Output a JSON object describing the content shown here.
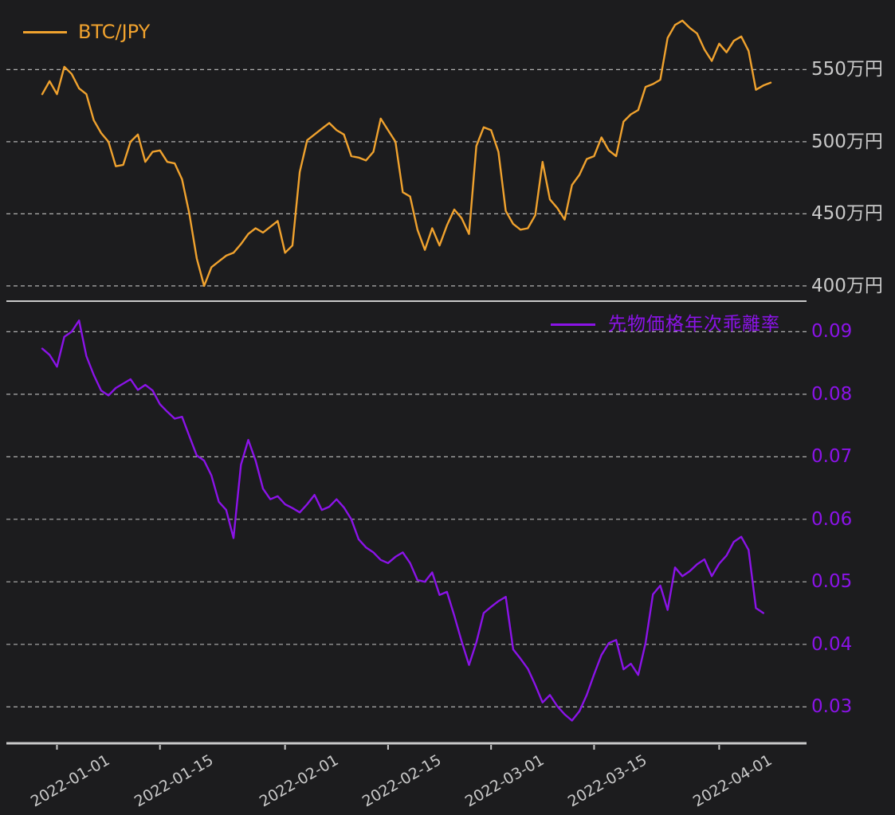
{
  "background_color": "#1c1c1e",
  "grid_color": "#b0b0b0",
  "axis_color": "#c9c9c9",
  "chart_data": [
    {
      "type": "line",
      "name": "btc-jpy-price",
      "legend": "BTC/JPY",
      "legend_position": "upper left",
      "color": "#f0a22e",
      "tick_label_color": "#c9c9c9",
      "unit": "万円",
      "ylim": [
        390,
        590
      ],
      "grid": true,
      "y_ticks": [
        {
          "value": 550,
          "label": "550万円"
        },
        {
          "value": 500,
          "label": "500万円"
        },
        {
          "value": 450,
          "label": "450万円"
        },
        {
          "value": 400,
          "label": "400万円"
        }
      ],
      "x_start_date": "2021-12-30",
      "x_interval": "daily",
      "values": [
        533,
        542,
        533,
        552,
        547,
        537,
        533,
        515,
        506,
        500,
        483,
        484,
        500,
        505,
        486,
        493,
        494,
        486,
        485,
        474,
        450,
        419,
        400,
        413,
        417,
        421,
        423,
        429,
        436,
        440,
        437,
        441,
        445,
        423,
        428,
        479,
        501,
        505,
        509,
        513,
        508,
        505,
        490,
        489,
        487,
        493,
        516,
        508,
        500,
        465,
        462,
        439,
        425,
        440,
        428,
        442,
        453,
        447,
        436,
        497,
        510,
        508,
        493,
        452,
        443,
        439,
        440,
        449,
        486,
        460,
        454,
        446,
        470,
        477,
        488,
        490,
        503,
        494,
        490,
        514,
        519,
        522,
        538,
        540,
        543,
        572,
        581,
        584,
        579,
        575,
        564,
        556,
        568,
        562,
        570,
        573,
        563,
        536,
        539,
        541
      ]
    },
    {
      "type": "line",
      "name": "futures-annualized-divergence-rate",
      "legend": "先物価格年次乖離率",
      "legend_position": "upper right",
      "color": "#8b13e8",
      "tick_label_color": "#8b13e8",
      "unit": "",
      "ylim": [
        0.0243,
        0.094
      ],
      "grid": true,
      "y_ticks": [
        {
          "value": 0.09,
          "label": "0.09"
        },
        {
          "value": 0.08,
          "label": "0.08"
        },
        {
          "value": 0.07,
          "label": "0.07"
        },
        {
          "value": 0.06,
          "label": "0.06"
        },
        {
          "value": 0.05,
          "label": "0.05"
        },
        {
          "value": 0.04,
          "label": "0.04"
        },
        {
          "value": 0.03,
          "label": "0.03"
        }
      ],
      "x_start_date": "2021-12-30",
      "x_interval": "daily",
      "values": [
        0.0873,
        0.0863,
        0.0844,
        0.0892,
        0.09,
        0.0918,
        0.0861,
        0.0831,
        0.0806,
        0.0798,
        0.081,
        0.0817,
        0.0824,
        0.0807,
        0.0815,
        0.0806,
        0.0784,
        0.0772,
        0.0761,
        0.0764,
        0.0733,
        0.0702,
        0.0694,
        0.067,
        0.0628,
        0.0615,
        0.057,
        0.0687,
        0.0727,
        0.0694,
        0.0649,
        0.0632,
        0.0637,
        0.0624,
        0.0618,
        0.0611,
        0.0624,
        0.0639,
        0.0615,
        0.062,
        0.0632,
        0.0619,
        0.06,
        0.0568,
        0.0555,
        0.0547,
        0.0535,
        0.053,
        0.054,
        0.0547,
        0.053,
        0.0503,
        0.05,
        0.0515,
        0.0479,
        0.0484,
        0.0446,
        0.0405,
        0.0367,
        0.0403,
        0.045,
        0.046,
        0.0469,
        0.0476,
        0.0392,
        0.0377,
        0.0361,
        0.0335,
        0.0307,
        0.0319,
        0.0301,
        0.0288,
        0.0278,
        0.0293,
        0.0319,
        0.0352,
        0.0383,
        0.0402,
        0.0407,
        0.036,
        0.0369,
        0.0351,
        0.0402,
        0.048,
        0.0494,
        0.0455,
        0.0523,
        0.0509,
        0.0517,
        0.0528,
        0.0536,
        0.0509,
        0.0529,
        0.0542,
        0.0564,
        0.0572,
        0.0551,
        0.0458,
        0.045
      ]
    }
  ],
  "x_axis": {
    "tick_labels": [
      "2022-01-01",
      "2022-01-15",
      "2022-02-01",
      "2022-02-15",
      "2022-03-01",
      "2022-03-15",
      "2022-04-01"
    ],
    "tick_day_offsets": [
      2,
      16,
      33,
      47,
      61,
      75,
      92
    ]
  }
}
